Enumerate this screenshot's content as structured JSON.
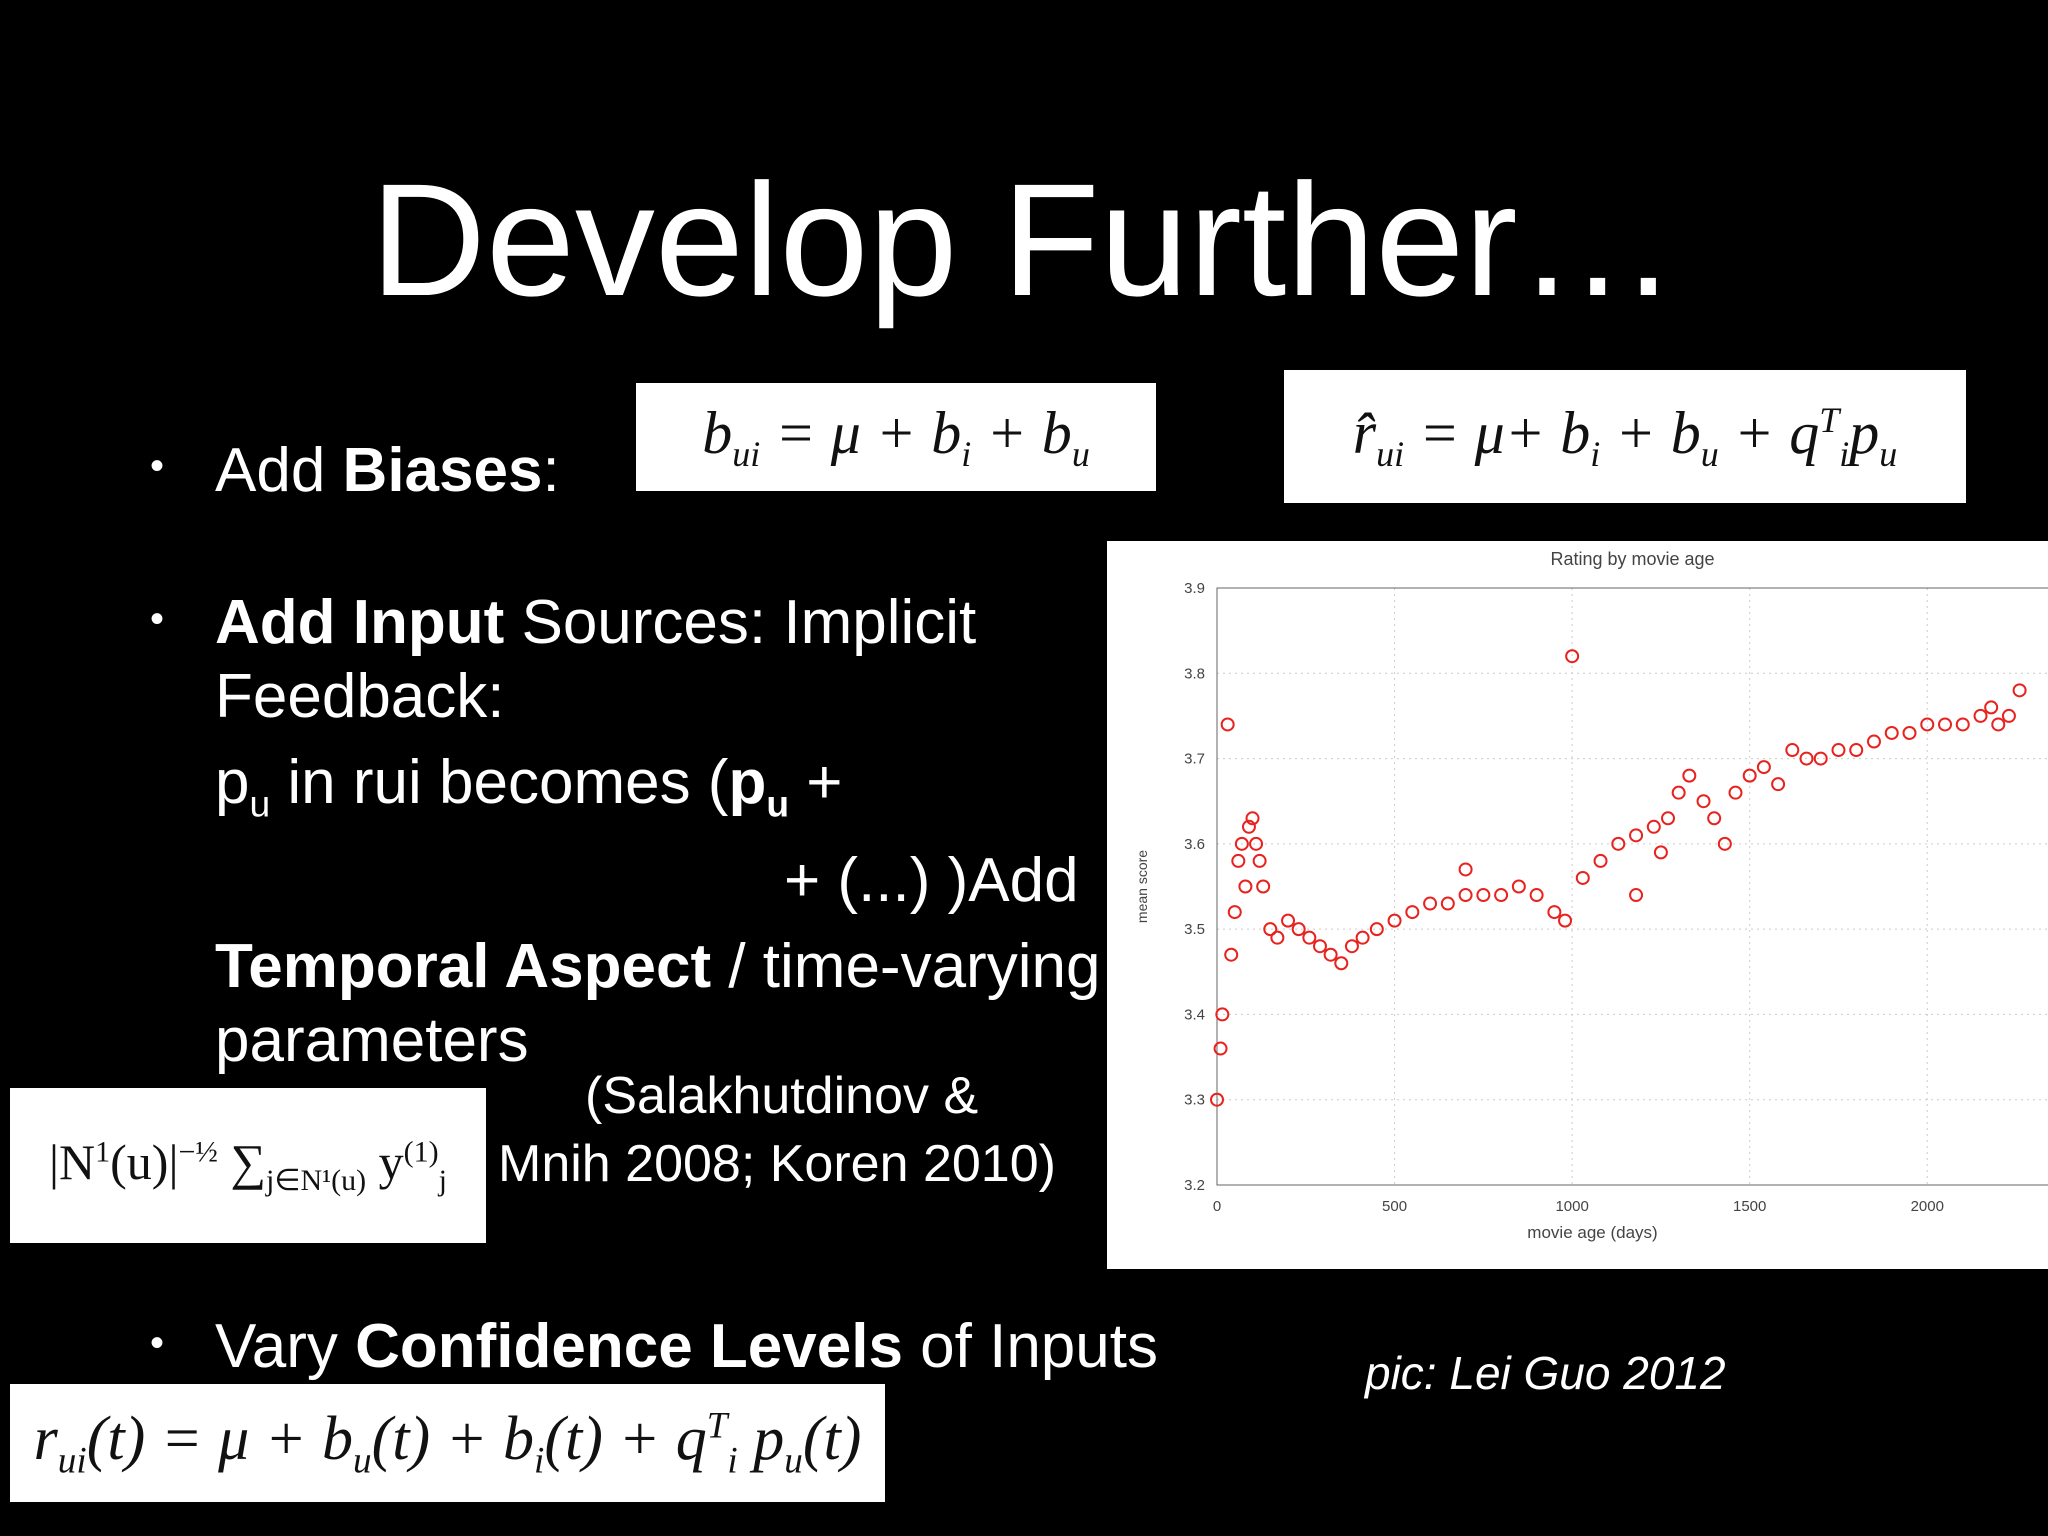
{
  "slide": {
    "title": "Develop Further…",
    "bullets": [
      [
        {
          "text": "Add "
        },
        {
          "text": "Biases",
          "bold": true
        },
        {
          "text": ":"
        }
      ],
      [
        {
          "text": "Add Input",
          "bold": true
        },
        {
          "text": " Sources: Implicit"
        }
      ],
      [
        {
          "text": "Feedback:"
        }
      ],
      [
        {
          "text": "p",
          "sub": "u"
        },
        {
          "text": " in rui becomes ("
        },
        {
          "text": "p",
          "sub": "u",
          "bold": true
        },
        {
          "text": " +"
        }
      ],
      [
        {
          "text": "+ (...) )"
        },
        {
          "text": "Add"
        }
      ],
      [
        {
          "text": "Temporal Aspect",
          "bold": true
        },
        {
          "text": " / time-varying"
        }
      ],
      [
        {
          "text": "parameters"
        }
      ],
      [
        {
          "text": "(Salakhutdinov &"
        }
      ],
      [
        {
          "text": "Mnih 2008; Koren 2010)"
        }
      ],
      [
        {
          "text": "Vary "
        },
        {
          "text": "Confidence Levels",
          "bold": true
        },
        {
          "text": " of Inputs"
        }
      ]
    ],
    "bullet_mark": "•",
    "credit": "pic: Lei Guo 2012",
    "formulas": [
      [
        {
          "text": "b",
          "sub": "ui"
        },
        {
          "text": " = μ + b",
          "sub": "i"
        },
        {
          "text": " + b",
          "sub": "u"
        }
      ],
      [
        {
          "text": "r̂",
          "sub": "ui"
        },
        {
          "text": " = μ+ b",
          "sub": "i"
        },
        {
          "text": " + b",
          "sub": "u"
        },
        {
          "text": " + q",
          "sub": "i",
          "sup": "T"
        },
        {
          "text": "p",
          "sub": "u"
        }
      ],
      [
        {
          "text": "|N",
          "sup": "1"
        },
        {
          "text": "(u)|",
          "sup": "−½"
        },
        {
          "text": " ∑",
          "sub": "j∈N¹(u)"
        },
        {
          "text": " y",
          "sub": "j",
          "sup": "(1)"
        }
      ],
      [
        {
          "text": "r",
          "sub": "ui"
        },
        {
          "text": "(t) = μ + b",
          "sub": "u"
        },
        {
          "text": "(t) + b",
          "sub": "i"
        },
        {
          "text": "(t) + q",
          "sub": "i",
          "sup": "T"
        },
        {
          "text": " p",
          "sub": "u"
        },
        {
          "text": "(t)"
        }
      ]
    ]
  },
  "chart_data": {
    "type": "scatter",
    "title": "Rating by movie age",
    "x_label": "movie age (days)",
    "y_label": "mean score",
    "color": "#e8231f",
    "grid": true,
    "xlim": [
      0,
      2340
    ],
    "ylim": [
      3.2,
      3.9
    ],
    "xticks": [
      0,
      500,
      1000,
      1500,
      2000
    ],
    "yticks": [
      3.2,
      3.3,
      3.4,
      3.5,
      3.6,
      3.7,
      3.8,
      3.9
    ],
    "x": [
      0,
      10,
      15,
      30,
      40,
      50,
      60,
      70,
      80,
      90,
      100,
      110,
      120,
      130,
      150,
      170,
      200,
      230,
      260,
      290,
      320,
      350,
      380,
      410,
      450,
      500,
      550,
      600,
      650,
      700,
      700,
      750,
      800,
      850,
      900,
      950,
      980,
      1000,
      1030,
      1080,
      1130,
      1180,
      1180,
      1230,
      1250,
      1270,
      1300,
      1330,
      1370,
      1400,
      1430,
      1460,
      1500,
      1540,
      1580,
      1620,
      1660,
      1700,
      1750,
      1800,
      1850,
      1900,
      1950,
      2000,
      2050,
      2100,
      2150,
      2180,
      2200,
      2230,
      2260
    ],
    "values": [
      3.3,
      3.36,
      3.4,
      3.74,
      3.47,
      3.52,
      3.58,
      3.6,
      3.55,
      3.62,
      3.63,
      3.6,
      3.58,
      3.55,
      3.5,
      3.49,
      3.51,
      3.5,
      3.49,
      3.48,
      3.47,
      3.46,
      3.48,
      3.49,
      3.5,
      3.51,
      3.52,
      3.53,
      3.53,
      3.54,
      3.57,
      3.54,
      3.54,
      3.55,
      3.54,
      3.52,
      3.51,
      3.82,
      3.56,
      3.58,
      3.6,
      3.61,
      3.54,
      3.62,
      3.59,
      3.63,
      3.66,
      3.68,
      3.65,
      3.63,
      3.6,
      3.66,
      3.68,
      3.69,
      3.67,
      3.71,
      3.7,
      3.7,
      3.71,
      3.71,
      3.72,
      3.73,
      3.73,
      3.74,
      3.74,
      3.74,
      3.75,
      3.76,
      3.74,
      3.75,
      3.78
    ]
  }
}
